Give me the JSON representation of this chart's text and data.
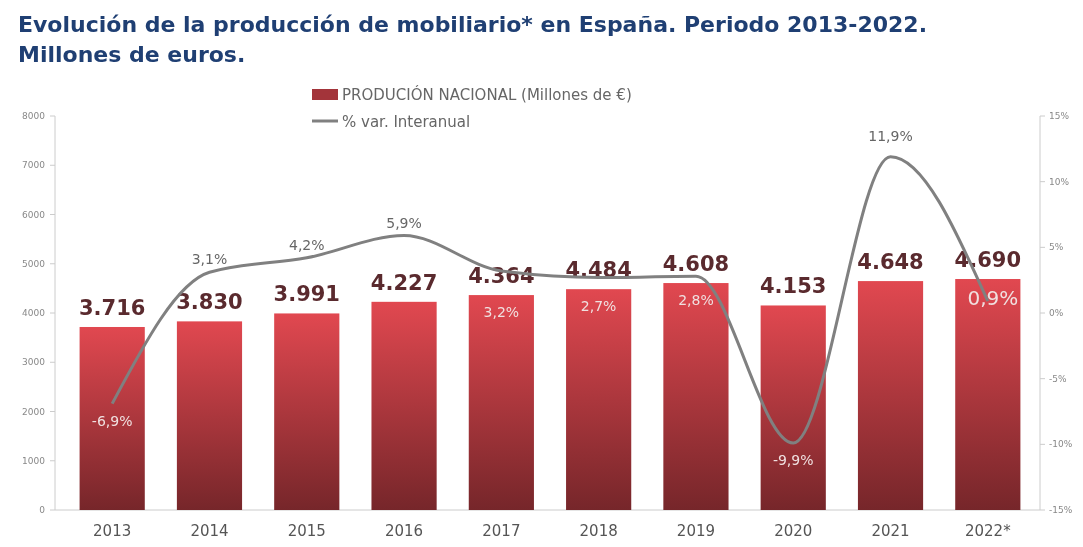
{
  "chart_data": {
    "type": "bar",
    "title": "Evolución de la producción de mobiliario* en España. Periodo 2013-2022.",
    "subtitle": "Millones de euros.",
    "categories": [
      "2013",
      "2014",
      "2015",
      "2016",
      "2017",
      "2018",
      "2019",
      "2020",
      "2021",
      "2022*"
    ],
    "series": [
      {
        "name": "PRODUCIÓN NACIONAL (Millones de €)",
        "color": "#a3343a",
        "values": [
          3716,
          3830,
          3991,
          4227,
          4364,
          4484,
          4608,
          4153,
          4648,
          4690
        ],
        "value_labels": [
          "3.716",
          "3.830",
          "3.991",
          "4.227",
          "4.364",
          "4.484",
          "4.608",
          "4.153",
          "4.648",
          "4.690"
        ]
      },
      {
        "name": "% var. Interanual",
        "type": "line",
        "axis": "y2",
        "color": "#808080",
        "values": [
          -6.9,
          3.1,
          4.2,
          5.9,
          3.2,
          2.7,
          2.8,
          -9.9,
          11.9,
          0.9
        ],
        "value_labels": [
          "-6,9%",
          "3,1%",
          "4,2%",
          "5,9%",
          "3,2%",
          "2,7%",
          "2,8%",
          "-9,9%",
          "11,9%",
          "0,9%"
        ]
      }
    ],
    "ylim": [
      0,
      8000
    ],
    "yticks": [
      0,
      1000,
      2000,
      3000,
      4000,
      5000,
      6000,
      7000,
      8000
    ],
    "y2lim": [
      -15,
      15
    ],
    "y2ticks": [
      {
        "value": -15,
        "label": "-15%"
      },
      {
        "value": -10,
        "label": "-10%"
      },
      {
        "value": -5,
        "label": "-5%"
      },
      {
        "value": 0,
        "label": "0%"
      },
      {
        "value": 5,
        "label": "5%"
      },
      {
        "value": 10,
        "label": "10%"
      },
      {
        "value": 15,
        "label": "15%"
      }
    ],
    "legend": "top",
    "grid": false
  }
}
